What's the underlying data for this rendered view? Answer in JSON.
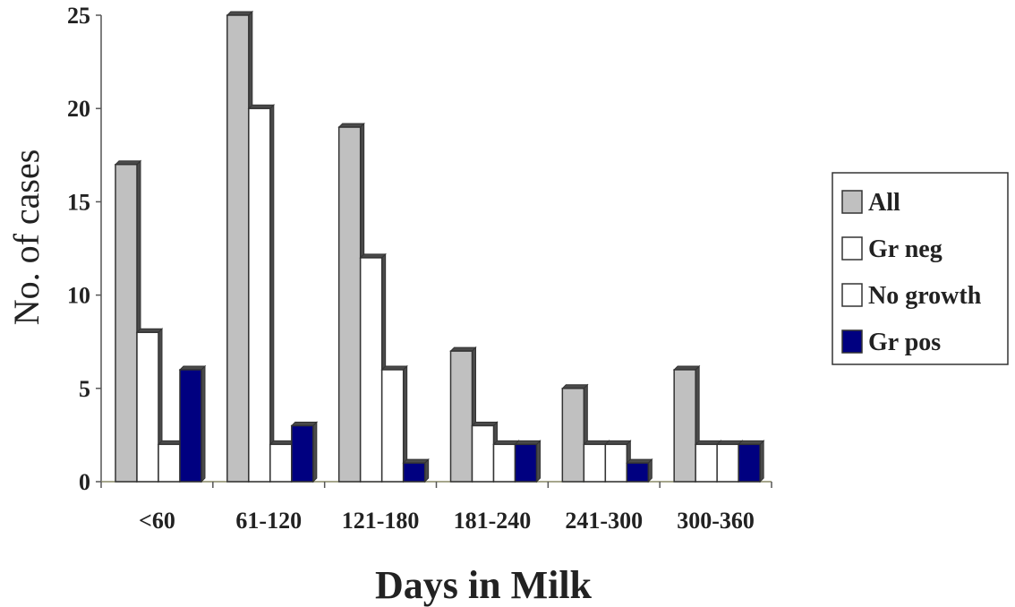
{
  "chart_data": {
    "type": "bar",
    "xlabel": "Days in Milk",
    "ylabel": "No. of cases",
    "ylim": [
      0,
      25
    ],
    "yticks": [
      "0",
      "5",
      "10",
      "15",
      "20",
      "25"
    ],
    "categories": [
      "<60",
      "61-120",
      "121-180",
      "181-240",
      "241-300",
      "300-360"
    ],
    "series": [
      {
        "name": "All",
        "values": [
          17,
          25,
          19,
          7,
          5,
          6
        ],
        "color": "#c0c0c0"
      },
      {
        "name": "Gr neg",
        "values": [
          8,
          20,
          12,
          3,
          2,
          2
        ],
        "color": "#ffffff"
      },
      {
        "name": "No growth",
        "values": [
          2,
          2,
          6,
          2,
          2,
          2
        ],
        "color": "#ffffff"
      },
      {
        "name": "Gr pos",
        "values": [
          6,
          3,
          1,
          2,
          1,
          2
        ],
        "color": "#000080"
      }
    ],
    "legend_position": "right",
    "grid": false
  }
}
